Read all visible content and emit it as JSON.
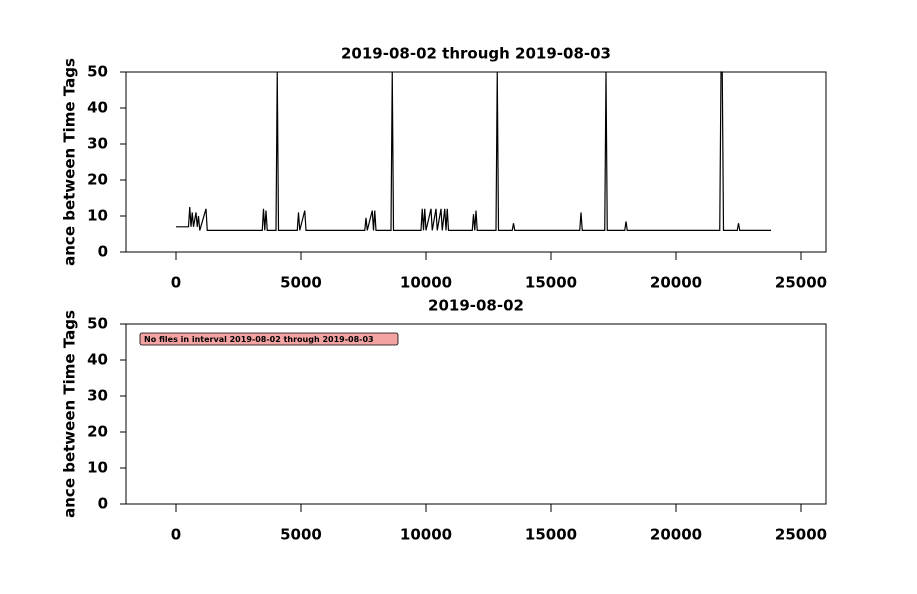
{
  "chart_data": [
    {
      "type": "line",
      "title": "2019-08-02 through 2019-08-03",
      "ylabel": "ance between Time Tags",
      "xlim": [
        -2000,
        26000
      ],
      "xticks": [
        0,
        5000,
        10000,
        15000,
        20000,
        25000
      ],
      "ylim": [
        0,
        50
      ],
      "yticks": [
        0,
        10,
        20,
        30,
        40,
        50
      ],
      "series": [
        {
          "color": "#000000",
          "x": [
            0,
            500,
            550,
            600,
            650,
            700,
            800,
            850,
            900,
            950,
            1200,
            1250,
            3450,
            3500,
            3550,
            3600,
            3650,
            4000,
            4050,
            4100,
            4850,
            4900,
            4950,
            5150,
            5200,
            7550,
            7600,
            7650,
            7850,
            7900,
            7950,
            8000,
            8600,
            8650,
            8700,
            9800,
            9850,
            9900,
            9950,
            10000,
            10200,
            10250,
            10400,
            10450,
            10600,
            10650,
            10750,
            10800,
            10850,
            10900,
            11850,
            11900,
            11950,
            12000,
            12050,
            12800,
            12850,
            12900,
            13450,
            13500,
            13550,
            16150,
            16200,
            16250,
            17150,
            17200,
            17250,
            17950,
            18000,
            18050,
            21750,
            21800,
            21850,
            21900,
            22450,
            22500,
            22550,
            23800
          ],
          "values": [
            7,
            7,
            12.5,
            7,
            11,
            7,
            11,
            7,
            10,
            6,
            12,
            6,
            6,
            12,
            6,
            11.5,
            6,
            6,
            50,
            6,
            6,
            11,
            6,
            11.5,
            6,
            6,
            9.5,
            6,
            11.5,
            6,
            11.5,
            6,
            6,
            50,
            6,
            6,
            12,
            6,
            12,
            6,
            12,
            6,
            12,
            6,
            12,
            6,
            12,
            6,
            12,
            6,
            6,
            10.5,
            6,
            11.5,
            6,
            6,
            50,
            6,
            6,
            8,
            6,
            6,
            11,
            6,
            6,
            50,
            6,
            6,
            8.5,
            6,
            6,
            50,
            50,
            6,
            6,
            8,
            6,
            6
          ]
        }
      ]
    },
    {
      "type": "line",
      "title": "2019-08-02",
      "ylabel": "ance between Time Tags",
      "annotation": "No files in interval 2019-08-02 through 2019-08-03",
      "xlim": [
        -2000,
        26000
      ],
      "xticks": [
        0,
        5000,
        10000,
        15000,
        20000,
        25000
      ],
      "ylim": [
        0,
        50
      ],
      "yticks": [
        0,
        10,
        20,
        30,
        40,
        50
      ],
      "series": [
        {
          "color": "#000000",
          "x": [],
          "values": []
        }
      ]
    }
  ]
}
